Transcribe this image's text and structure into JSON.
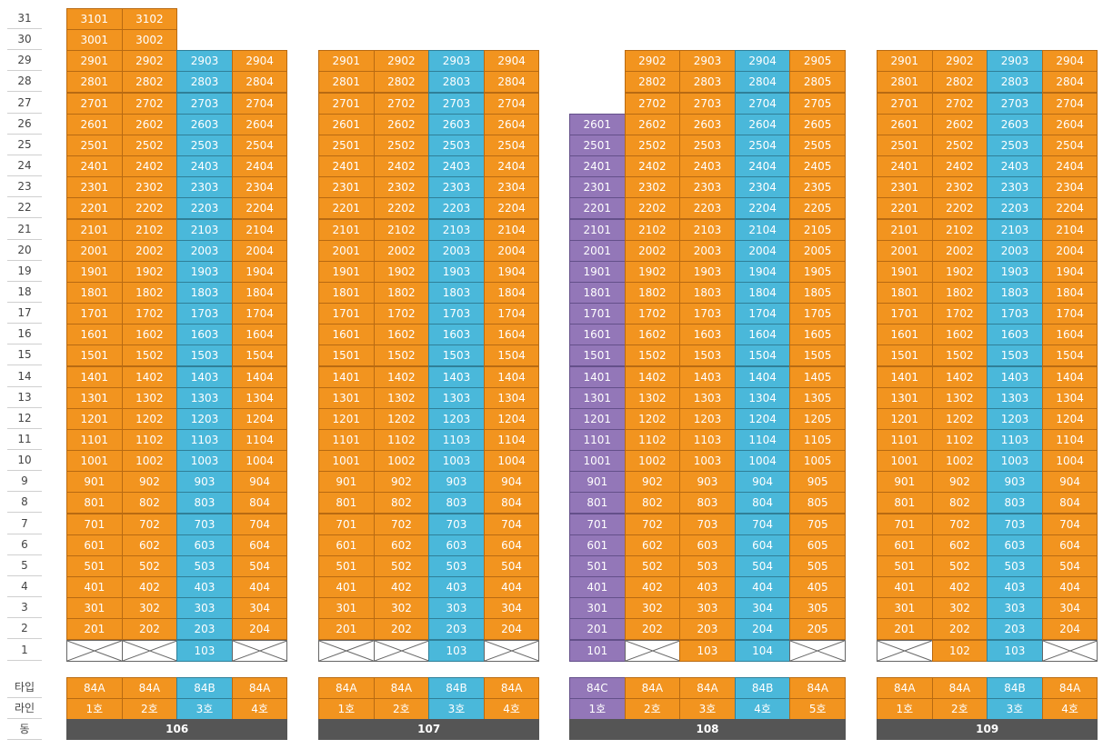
{
  "floors": [
    "31",
    "30",
    "29",
    "28",
    "27",
    "26",
    "25",
    "24",
    "23",
    "22",
    "21",
    "20",
    "19",
    "18",
    "17",
    "16",
    "15",
    "14",
    "13",
    "12",
    "11",
    "10",
    "9",
    "8",
    "7",
    "6",
    "5",
    "4",
    "3",
    "2",
    "1"
  ],
  "meta_labels": {
    "type": "타입",
    "line": "라인",
    "building": "동"
  },
  "colors": {
    "84A": "#f2941f",
    "84B": "#4ab8da",
    "84C": "#9377b8"
  },
  "buildings": [
    {
      "name": "106",
      "lines": [
        {
          "line": "1호",
          "type": "84A",
          "top_floor": 31,
          "floor1": "empty"
        },
        {
          "line": "2호",
          "type": "84A",
          "top_floor": 31,
          "floor1": "empty"
        },
        {
          "line": "3호",
          "type": "84B",
          "top_floor": 29,
          "floor1": "103"
        },
        {
          "line": "4호",
          "type": "84A",
          "top_floor": 29,
          "floor1": "empty"
        }
      ]
    },
    {
      "name": "107",
      "lines": [
        {
          "line": "1호",
          "type": "84A",
          "top_floor": 29,
          "floor1": "empty"
        },
        {
          "line": "2호",
          "type": "84A",
          "top_floor": 29,
          "floor1": "empty"
        },
        {
          "line": "3호",
          "type": "84B",
          "top_floor": 29,
          "floor1": "103"
        },
        {
          "line": "4호",
          "type": "84A",
          "top_floor": 29,
          "floor1": "empty"
        }
      ]
    },
    {
      "name": "108",
      "lines": [
        {
          "line": "1호",
          "type": "84C",
          "top_floor": 26,
          "floor1": "101"
        },
        {
          "line": "2호",
          "type": "84A",
          "top_floor": 29,
          "floor1": "empty"
        },
        {
          "line": "3호",
          "type": "84A",
          "top_floor": 29,
          "floor1": "103"
        },
        {
          "line": "4호",
          "type": "84B",
          "top_floor": 29,
          "floor1": "104"
        },
        {
          "line": "5호",
          "type": "84A",
          "top_floor": 29,
          "floor1": "empty"
        }
      ]
    },
    {
      "name": "109",
      "lines": [
        {
          "line": "1호",
          "type": "84A",
          "top_floor": 29,
          "floor1": "empty"
        },
        {
          "line": "2호",
          "type": "84A",
          "top_floor": 29,
          "floor1": "102"
        },
        {
          "line": "3호",
          "type": "84B",
          "top_floor": 29,
          "floor1": "103"
        },
        {
          "line": "4호",
          "type": "84A",
          "top_floor": 29,
          "floor1": "empty"
        }
      ]
    }
  ]
}
